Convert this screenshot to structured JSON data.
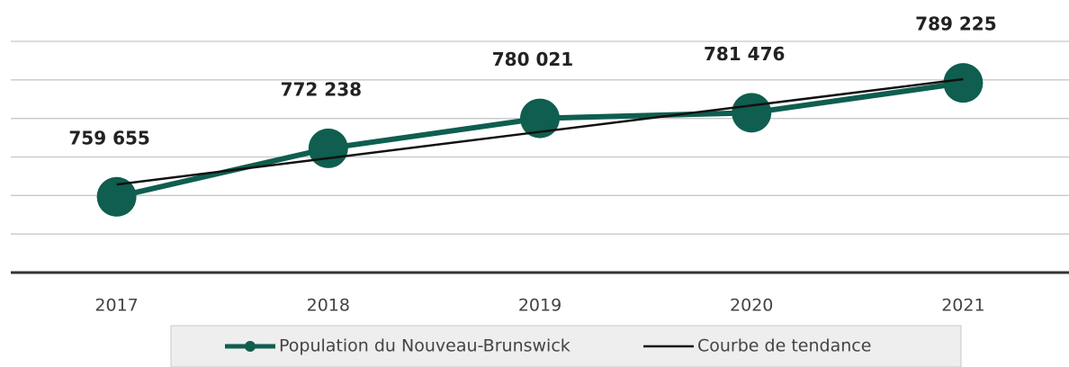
{
  "chart_data": {
    "type": "line",
    "categories": [
      "2017",
      "2018",
      "2019",
      "2020",
      "2021"
    ],
    "series": [
      {
        "name": "Population du Nouveau-Brunswick",
        "color": "#0f5e4f",
        "values": [
          759655,
          772238,
          780021,
          781476,
          789225
        ],
        "value_labels": [
          "759 655",
          "772 238",
          "780 021",
          "781 476",
          "789 225"
        ]
      },
      {
        "name": "Courbe de tendance",
        "color": "#111111",
        "values": [
          762847,
          769685,
          776523,
          783361,
          790199
        ]
      }
    ],
    "ylim": [
      740000,
      800000
    ],
    "yticks": [
      740000,
      750000,
      760000,
      770000,
      780000,
      790000,
      800000
    ],
    "grid": true,
    "legend": "bottom"
  }
}
